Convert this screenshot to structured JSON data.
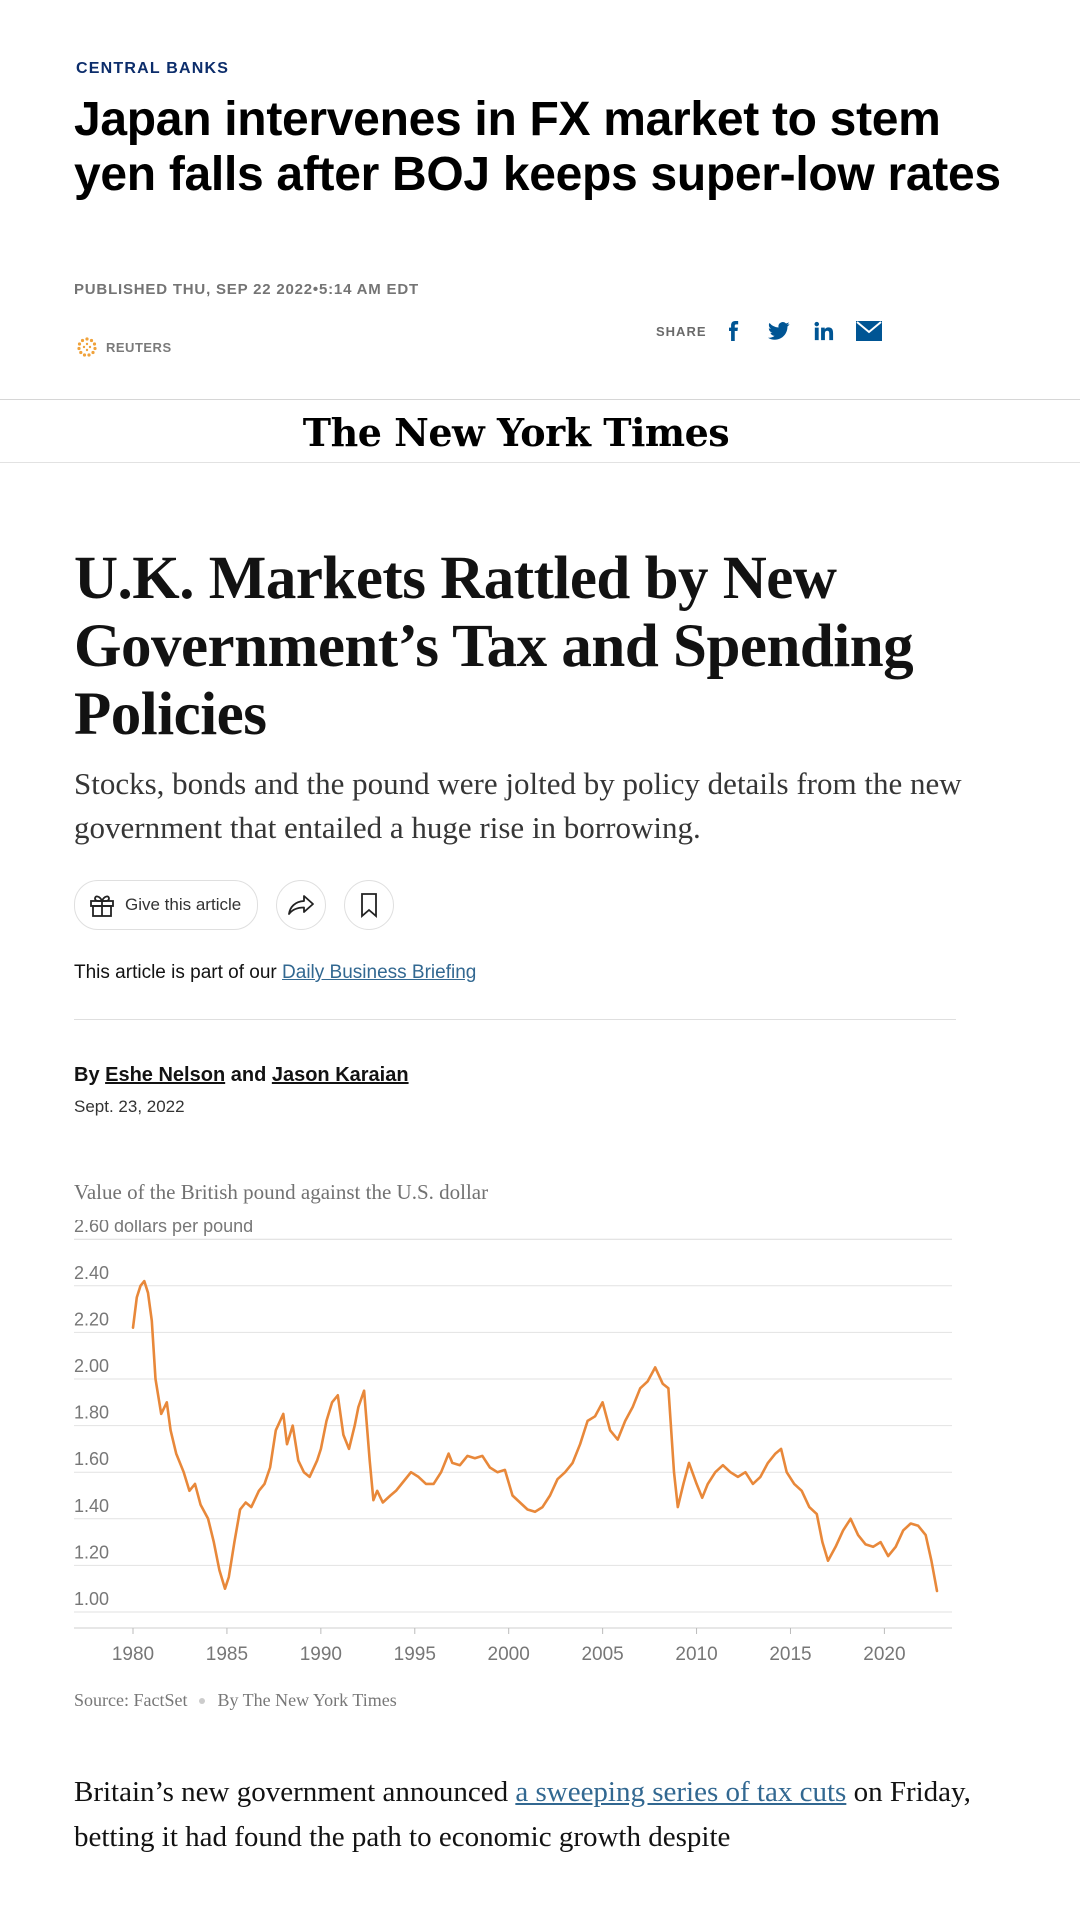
{
  "cnbc": {
    "kicker": "CENTRAL BANKS",
    "title": "Japan intervenes in FX market to stem yen falls after BOJ keeps super-low rates",
    "published": "PUBLISHED THU, SEP 22 2022•5:14 AM EDT",
    "source": "REUTERS",
    "share_label": "SHARE",
    "share_icons": [
      "facebook-icon",
      "twitter-icon",
      "linkedin-icon",
      "email-icon"
    ],
    "accent_color": "#005594"
  },
  "nyt": {
    "logo": "The New York Times",
    "headline": "U.K. Markets Rattled by New Government’s Tax and Spending Policies",
    "summary": "Stocks, bonds and the pound were jolted by policy details from the new government that entailed a huge rise in borrowing.",
    "give_label": "Give this article",
    "briefing_prefix": "This article is part of our ",
    "briefing_link": "Daily Business Briefing",
    "byline_by": "By ",
    "author1": "Eshe Nelson",
    "byline_and": " and ",
    "author2": "Jason Karaian",
    "date": "Sept. 23, 2022",
    "link_color": "#326891"
  },
  "chart_data": {
    "type": "line",
    "title": "Value of the British pound against the U.S. dollar",
    "ylabel": "2.60 dollars per pound",
    "y_ticks": [
      "2.40",
      "2.20",
      "2.00",
      "1.80",
      "1.60",
      "1.40",
      "1.20",
      "1.00"
    ],
    "x_ticks": [
      "1980",
      "1985",
      "1990",
      "1995",
      "2000",
      "2005",
      "2010",
      "2015",
      "2020"
    ],
    "ylim": [
      1.0,
      2.6
    ],
    "xlim": [
      1980,
      2022.8
    ],
    "color": "#e8883a",
    "series": [
      {
        "x": [
          1980.0,
          1980.2,
          1980.4,
          1980.6,
          1980.8,
          1981.0,
          1981.2,
          1981.5,
          1981.8,
          1982.0,
          1982.3,
          1982.7,
          1983.0,
          1983.3,
          1983.6,
          1984.0,
          1984.3,
          1984.6,
          1984.9,
          1985.1,
          1985.4,
          1985.7,
          1986.0,
          1986.3,
          1986.7,
          1987.0,
          1987.3,
          1987.6,
          1988.0,
          1988.2,
          1988.5,
          1988.8,
          1989.1,
          1989.4,
          1989.8,
          1990.0,
          1990.3,
          1990.6,
          1990.9,
          1991.2,
          1991.5,
          1991.8,
          1992.0,
          1992.3,
          1992.6,
          1992.8,
          1993.0,
          1993.3,
          1993.7,
          1994.0,
          1994.4,
          1994.8,
          1995.2,
          1995.6,
          1996.0,
          1996.4,
          1996.8,
          1997.0,
          1997.4,
          1997.8,
          1998.2,
          1998.6,
          1999.0,
          1999.4,
          1999.8,
          2000.2,
          2000.6,
          2001.0,
          2001.4,
          2001.8,
          2002.2,
          2002.6,
          2003.0,
          2003.4,
          2003.8,
          2004.2,
          2004.6,
          2005.0,
          2005.4,
          2005.8,
          2006.2,
          2006.6,
          2007.0,
          2007.4,
          2007.8,
          2008.2,
          2008.5,
          2008.8,
          2009.0,
          2009.3,
          2009.6,
          2010.0,
          2010.3,
          2010.6,
          2011.0,
          2011.4,
          2011.8,
          2012.2,
          2012.6,
          2013.0,
          2013.4,
          2013.8,
          2014.2,
          2014.5,
          2014.8,
          2015.2,
          2015.6,
          2016.0,
          2016.4,
          2016.7,
          2017.0,
          2017.4,
          2017.8,
          2018.2,
          2018.6,
          2019.0,
          2019.4,
          2019.8,
          2020.2,
          2020.6,
          2021.0,
          2021.4,
          2021.8,
          2022.2,
          2022.5,
          2022.8
        ],
        "values": [
          2.22,
          2.35,
          2.4,
          2.42,
          2.37,
          2.25,
          2.0,
          1.85,
          1.9,
          1.78,
          1.68,
          1.6,
          1.52,
          1.55,
          1.46,
          1.4,
          1.3,
          1.18,
          1.1,
          1.15,
          1.3,
          1.44,
          1.47,
          1.45,
          1.52,
          1.55,
          1.62,
          1.78,
          1.85,
          1.72,
          1.8,
          1.65,
          1.6,
          1.58,
          1.65,
          1.7,
          1.82,
          1.9,
          1.93,
          1.76,
          1.7,
          1.8,
          1.88,
          1.95,
          1.65,
          1.48,
          1.52,
          1.47,
          1.5,
          1.52,
          1.56,
          1.6,
          1.58,
          1.55,
          1.55,
          1.6,
          1.68,
          1.64,
          1.63,
          1.67,
          1.66,
          1.67,
          1.62,
          1.6,
          1.61,
          1.5,
          1.47,
          1.44,
          1.43,
          1.45,
          1.5,
          1.57,
          1.6,
          1.64,
          1.72,
          1.82,
          1.84,
          1.9,
          1.78,
          1.74,
          1.82,
          1.88,
          1.96,
          1.99,
          2.05,
          1.98,
          1.96,
          1.6,
          1.45,
          1.55,
          1.64,
          1.55,
          1.49,
          1.55,
          1.6,
          1.63,
          1.6,
          1.58,
          1.6,
          1.55,
          1.58,
          1.64,
          1.68,
          1.7,
          1.6,
          1.55,
          1.52,
          1.45,
          1.42,
          1.3,
          1.22,
          1.28,
          1.35,
          1.4,
          1.33,
          1.29,
          1.28,
          1.3,
          1.24,
          1.28,
          1.35,
          1.38,
          1.37,
          1.33,
          1.22,
          1.09
        ]
      }
    ],
    "source": "Source: FactSet",
    "credit": "By The New York Times"
  },
  "body": {
    "prefix": "Britain’s new government announced ",
    "link": "a sweeping series of tax cuts",
    "suffix": " on Friday, betting it had found the path to economic growth despite"
  }
}
